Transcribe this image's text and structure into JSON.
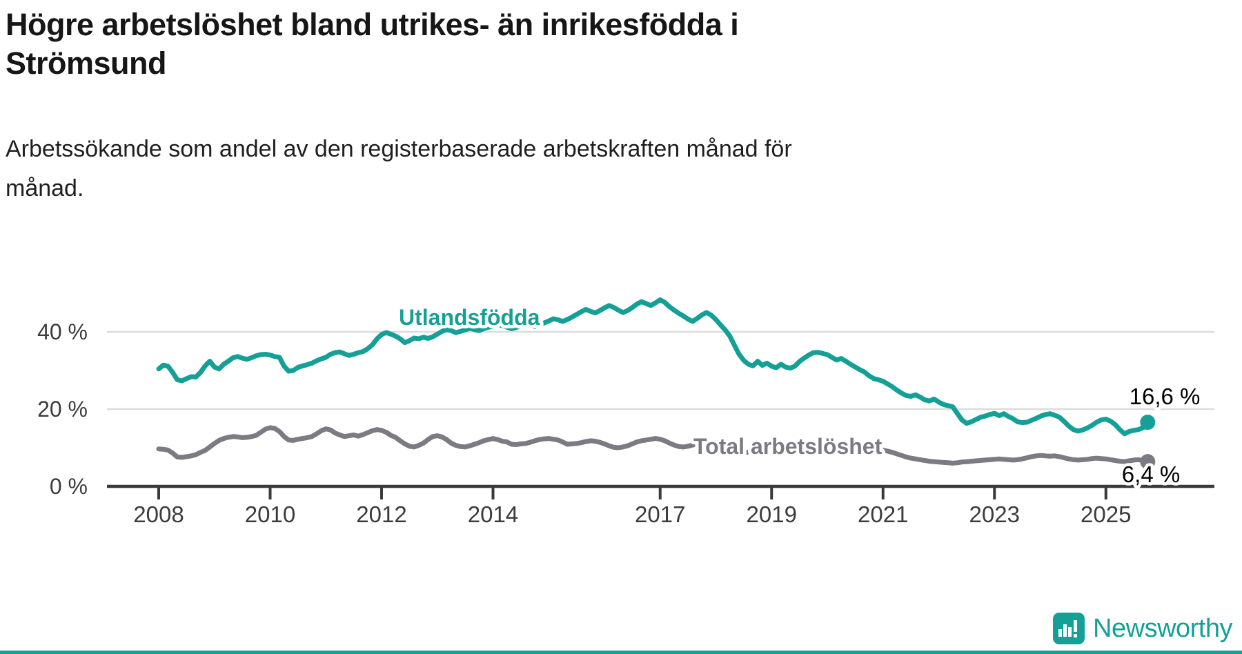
{
  "header": {
    "title_lines": [
      "Högre arbetslöshet bland utrikes- än inrikesfödda i",
      "Strömsund"
    ],
    "subtitle_lines": [
      "Arbetssökande som andel av den registerbaserade arbetskraften månad för",
      "månad."
    ]
  },
  "footer": {
    "brand": "Newsworthy",
    "logo_icon": "bar-chart-exclamation-icon"
  },
  "colors": {
    "teal": "#14A096",
    "gray": "#7C7A82",
    "axis": "#3A3A3A",
    "grid": "#DCDCDC",
    "annotation": "#000000",
    "tick_label": "#3B3B3B",
    "title": "#161616"
  },
  "chart_data": {
    "type": "line",
    "x_start_year": 2008,
    "x_step_months": 1,
    "x_tick_years": [
      2008,
      2010,
      2012,
      2014,
      2017,
      2019,
      2021,
      2023,
      2025
    ],
    "x_tick_labels": [
      "2008",
      "2010",
      "2012",
      "2014",
      "2017",
      "2019",
      "2021",
      "2023",
      "2025"
    ],
    "y_tick_values": [
      0,
      20,
      40
    ],
    "y_tick_labels": [
      "0 %",
      "20 %",
      "40 %"
    ],
    "ylim": [
      0,
      49
    ],
    "xlim_years": [
      2007.1,
      2026.9
    ],
    "grid": "horizontal-only",
    "legend_position": "inline-labels",
    "series": [
      {
        "name": "Utlandsfödda",
        "color": "#14A096",
        "end_label": "16,6 %",
        "end_value": 16.6,
        "values": [
          30.4,
          31.4,
          31.1,
          29.5,
          27.6,
          27.3,
          27.9,
          28.4,
          28.3,
          29.5,
          31.2,
          32.4,
          30.9,
          30.4,
          31.6,
          32.4,
          33.3,
          33.6,
          33.2,
          32.9,
          33.3,
          33.8,
          34.1,
          34.2,
          34.0,
          33.6,
          33.4,
          31.1,
          29.8,
          30.0,
          30.8,
          31.2,
          31.5,
          31.9,
          32.5,
          33.0,
          33.4,
          34.2,
          34.6,
          34.8,
          34.3,
          33.9,
          34.2,
          34.6,
          34.9,
          35.6,
          36.6,
          38.2,
          39.3,
          39.8,
          39.4,
          38.9,
          38.2,
          37.2,
          37.7,
          38.4,
          38.2,
          38.6,
          38.3,
          38.7,
          39.4,
          40.1,
          40.6,
          40.3,
          39.8,
          40.1,
          40.5,
          40.9,
          40.6,
          40.3,
          40.8,
          41.2,
          41.5,
          41.9,
          41.6,
          41.2,
          40.8,
          41.1,
          41.6,
          42.0,
          41.7,
          41.4,
          41.8,
          42.3,
          42.8,
          43.4,
          43.1,
          42.7,
          43.2,
          43.8,
          44.5,
          45.2,
          45.8,
          45.3,
          44.9,
          45.5,
          46.2,
          46.8,
          46.3,
          45.6,
          45.0,
          45.5,
          46.3,
          47.2,
          47.8,
          47.3,
          46.8,
          47.5,
          48.3,
          47.6,
          46.5,
          45.6,
          44.8,
          44.1,
          43.3,
          42.7,
          43.5,
          44.4,
          45.0,
          44.3,
          43.2,
          41.8,
          40.5,
          38.9,
          36.5,
          34.2,
          32.6,
          31.6,
          31.2,
          32.4,
          31.3,
          31.9,
          31.1,
          30.7,
          31.6,
          30.9,
          30.6,
          31.1,
          32.3,
          33.2,
          34.0,
          34.6,
          34.7,
          34.4,
          34.1,
          33.4,
          32.7,
          33.1,
          32.4,
          31.6,
          30.9,
          30.2,
          29.6,
          28.6,
          27.9,
          27.6,
          27.2,
          26.5,
          25.8,
          24.9,
          24.1,
          23.5,
          23.3,
          23.7,
          23.1,
          22.4,
          22.1,
          22.6,
          21.8,
          21.2,
          20.9,
          20.6,
          18.9,
          17.2,
          16.3,
          16.7,
          17.3,
          17.9,
          18.2,
          18.6,
          18.9,
          18.3,
          18.8,
          18.1,
          17.5,
          16.7,
          16.5,
          16.6,
          17.1,
          17.6,
          18.2,
          18.6,
          18.8,
          18.4,
          17.9,
          16.8,
          15.6,
          14.7,
          14.3,
          14.6,
          15.1,
          15.8,
          16.6,
          17.2,
          17.4,
          16.9,
          16.0,
          14.7,
          13.6,
          14.2,
          14.5,
          14.7,
          15.2,
          16.6
        ]
      },
      {
        "name": "Total arbetslöshet",
        "color": "#7C7A82",
        "end_label": "6,4 %",
        "end_value": 6.4,
        "values": [
          9.7,
          9.6,
          9.4,
          8.6,
          7.6,
          7.5,
          7.7,
          7.9,
          8.2,
          8.8,
          9.3,
          10.2,
          11.1,
          11.9,
          12.4,
          12.7,
          12.9,
          12.8,
          12.6,
          12.7,
          12.9,
          13.2,
          14.0,
          14.8,
          15.2,
          15.0,
          14.2,
          12.9,
          12.0,
          11.9,
          12.2,
          12.4,
          12.6,
          12.9,
          13.6,
          14.4,
          14.9,
          14.6,
          13.8,
          13.3,
          12.9,
          13.1,
          13.3,
          13.0,
          13.4,
          13.9,
          14.4,
          14.7,
          14.5,
          14.0,
          13.2,
          12.7,
          11.8,
          11.0,
          10.4,
          10.2,
          10.6,
          11.2,
          12.1,
          12.9,
          13.1,
          12.8,
          12.1,
          11.2,
          10.6,
          10.3,
          10.2,
          10.5,
          10.9,
          11.3,
          11.8,
          12.1,
          12.4,
          12.1,
          11.7,
          11.5,
          10.9,
          10.8,
          11.0,
          11.1,
          11.4,
          11.8,
          12.1,
          12.3,
          12.4,
          12.2,
          12.0,
          11.5,
          10.9,
          11.0,
          11.1,
          11.3,
          11.6,
          11.8,
          11.7,
          11.4,
          11.0,
          10.5,
          10.1,
          10.0,
          10.2,
          10.5,
          11.0,
          11.5,
          11.8,
          12.0,
          12.2,
          12.4,
          12.2,
          11.8,
          11.2,
          10.7,
          10.3,
          10.2,
          10.4,
          10.7,
          11.0,
          11.2,
          11.0,
          10.7,
          10.5,
          10.2,
          9.8,
          9.4,
          9.0,
          8.8,
          8.7,
          8.9,
          9.2,
          9.4,
          9.6,
          9.8,
          9.9,
          9.7,
          9.4,
          9.1,
          8.9,
          9.0,
          9.2,
          9.4,
          9.6,
          9.8,
          10.0,
          10.1,
          10.2,
          10.0,
          9.8,
          10.3,
          10.6,
          10.8,
          10.9,
          10.7,
          10.4,
          10.1,
          9.8,
          9.6,
          9.4,
          9.1,
          8.8,
          8.4,
          8.0,
          7.6,
          7.3,
          7.1,
          6.9,
          6.7,
          6.5,
          6.4,
          6.3,
          6.2,
          6.1,
          6.0,
          6.1,
          6.3,
          6.4,
          6.5,
          6.6,
          6.7,
          6.8,
          6.9,
          7.0,
          7.1,
          7.0,
          6.9,
          6.8,
          6.9,
          7.1,
          7.4,
          7.7,
          7.9,
          8.0,
          7.9,
          7.8,
          7.9,
          7.7,
          7.4,
          7.1,
          6.9,
          6.8,
          6.9,
          7.0,
          7.2,
          7.3,
          7.2,
          7.1,
          6.9,
          6.7,
          6.5,
          6.4,
          6.6,
          6.8,
          6.9,
          6.7,
          6.4
        ]
      }
    ]
  }
}
